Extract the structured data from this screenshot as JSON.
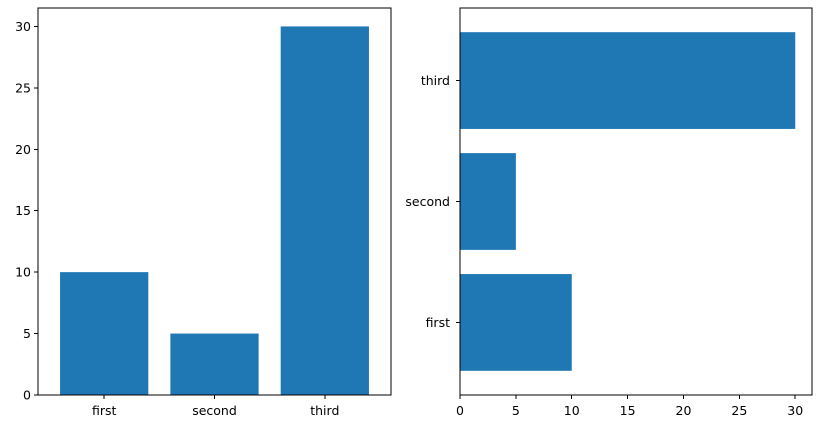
{
  "chart_data": [
    {
      "type": "bar",
      "orientation": "vertical",
      "categories": [
        "first",
        "second",
        "third"
      ],
      "values": [
        10,
        5,
        30
      ],
      "title": "",
      "xlabel": "",
      "ylabel": "",
      "ylim": [
        0,
        31.5
      ],
      "yticks": [
        0,
        5,
        10,
        15,
        20,
        25,
        30
      ],
      "ytick_labels": [
        "0",
        "5",
        "10",
        "15",
        "20",
        "25",
        "30"
      ],
      "grid": false,
      "color": "#1f77b4"
    },
    {
      "type": "bar",
      "orientation": "horizontal",
      "categories": [
        "first",
        "second",
        "third"
      ],
      "values": [
        10,
        5,
        30
      ],
      "title": "",
      "xlabel": "",
      "ylabel": "",
      "xlim": [
        0,
        31.5
      ],
      "xticks": [
        0,
        5,
        10,
        15,
        20,
        25,
        30
      ],
      "xtick_labels": [
        "0",
        "5",
        "10",
        "15",
        "20",
        "25",
        "30"
      ],
      "grid": false,
      "color": "#1f77b4"
    }
  ]
}
